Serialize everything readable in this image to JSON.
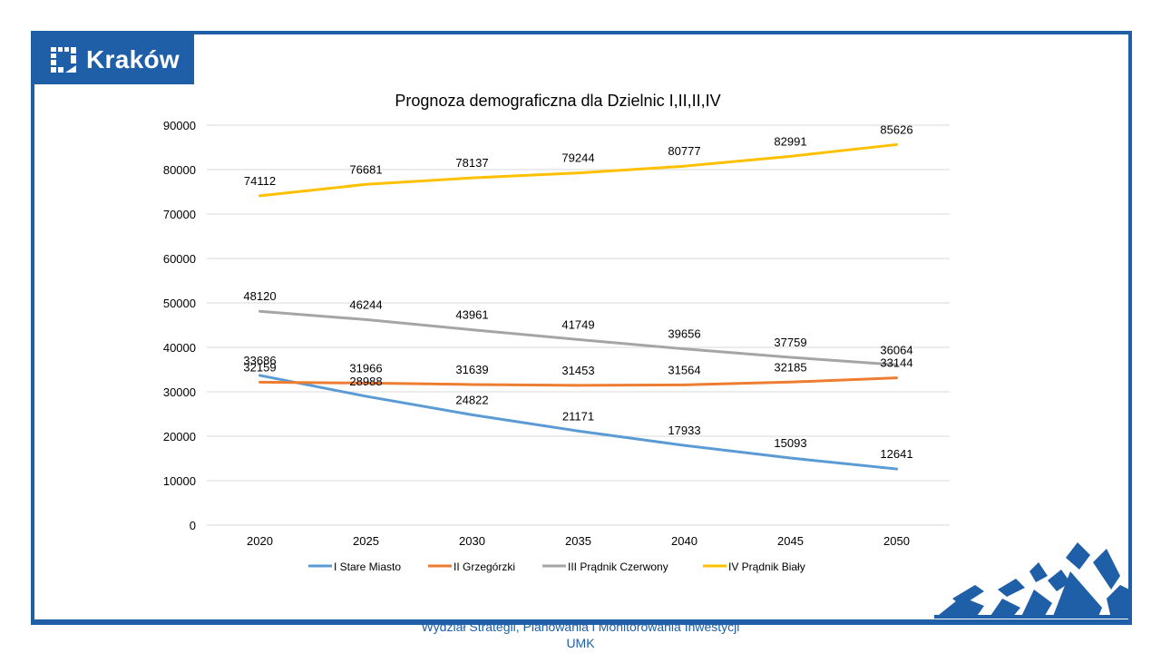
{
  "logo": {
    "text": "Kraków",
    "icon": "krakow-city-mark-icon"
  },
  "footer": {
    "line1": "Wydział Strategii, Planowania i Monitorowania Inwestycji",
    "line2": "UMK"
  },
  "colors": {
    "brand": "#1e5fa8"
  },
  "chart_data": {
    "type": "line",
    "title": "Prognoza demograficzna dla Dzielnic I,II,II,IV",
    "xlabel": "",
    "ylabel": "",
    "x": [
      "2020",
      "2025",
      "2030",
      "2035",
      "2040",
      "2045",
      "2050"
    ],
    "ylim": [
      0,
      90000
    ],
    "yticks": [
      0,
      10000,
      20000,
      30000,
      40000,
      50000,
      60000,
      70000,
      80000,
      90000
    ],
    "grid": true,
    "legend": "bottom",
    "series": [
      {
        "name": "I Stare Miasto",
        "color": "#5b9bd5",
        "values": [
          33686,
          28988,
          24822,
          21171,
          17933,
          15093,
          12641
        ]
      },
      {
        "name": "II Grzegórzki",
        "color": "#ed7d31",
        "values": [
          32159,
          31966,
          31639,
          31453,
          31564,
          32185,
          33144
        ]
      },
      {
        "name": "III Prądnik Czerwony",
        "color": "#a5a5a5",
        "values": [
          48120,
          46244,
          43961,
          41749,
          39656,
          37759,
          36064
        ]
      },
      {
        "name": "IV Prądnik Biały",
        "color": "#ffc000",
        "values": [
          74112,
          76681,
          78137,
          79244,
          80777,
          82991,
          85626
        ]
      }
    ]
  }
}
